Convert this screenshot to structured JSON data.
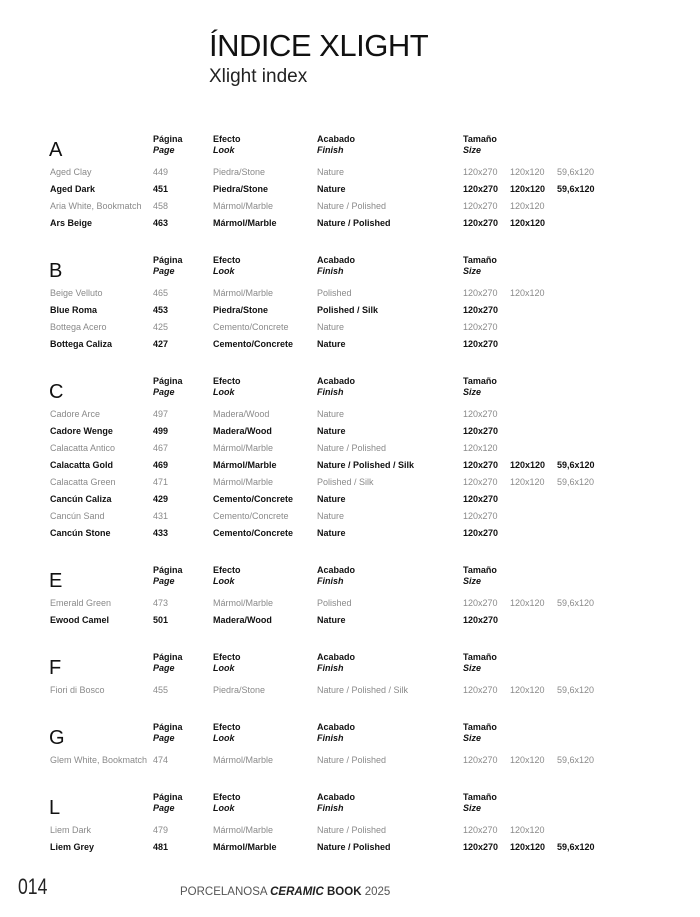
{
  "header": {
    "title": "ÍNDICE XLIGHT",
    "subtitle": "Xlight index"
  },
  "columns": {
    "page_es": "Página",
    "page_en": "Page",
    "look_es": "Efecto",
    "look_en": "Look",
    "finish_es": "Acabado",
    "finish_en": "Finish",
    "size_es": "Tamaño",
    "size_en": "Size"
  },
  "sections": [
    {
      "letter": "A",
      "rows": [
        {
          "name": "Aged Clay",
          "page": "449",
          "look": "Piedra/Stone",
          "finish": "Nature",
          "sizes": [
            "120x270",
            "120x120",
            "59,6x120"
          ]
        },
        {
          "name": "Aged Dark",
          "page": "451",
          "look": "Piedra/Stone",
          "finish": "Nature",
          "sizes": [
            "120x270",
            "120x120",
            "59,6x120"
          ]
        },
        {
          "name": "Aria White, Bookmatch",
          "page": "458",
          "look": "Mármol/Marble",
          "finish": "Nature / Polished",
          "sizes": [
            "120x270",
            "120x120"
          ]
        },
        {
          "name": "Ars Beige",
          "page": "463",
          "look": "Mármol/Marble",
          "finish": "Nature / Polished",
          "sizes": [
            "120x270",
            "120x120"
          ]
        }
      ]
    },
    {
      "letter": "B",
      "rows": [
        {
          "name": "Beige Velluto",
          "page": "465",
          "look": "Mármol/Marble",
          "finish": "Polished",
          "sizes": [
            "120x270",
            "120x120"
          ]
        },
        {
          "name": "Blue Roma",
          "page": "453",
          "look": "Piedra/Stone",
          "finish": "Polished / Silk",
          "sizes": [
            "120x270"
          ]
        },
        {
          "name": "Bottega Acero",
          "page": "425",
          "look": "Cemento/Concrete",
          "finish": "Nature",
          "sizes": [
            "120x270"
          ]
        },
        {
          "name": "Bottega Caliza",
          "page": "427",
          "look": "Cemento/Concrete",
          "finish": "Nature",
          "sizes": [
            "120x270"
          ]
        }
      ]
    },
    {
      "letter": "C",
      "rows": [
        {
          "name": "Cadore Arce",
          "page": "497",
          "look": "Madera/Wood",
          "finish": "Nature",
          "sizes": [
            "120x270"
          ]
        },
        {
          "name": "Cadore Wenge",
          "page": "499",
          "look": "Madera/Wood",
          "finish": "Nature",
          "sizes": [
            "120x270"
          ]
        },
        {
          "name": "Calacatta Antico",
          "page": "467",
          "look": "Mármol/Marble",
          "finish": "Nature / Polished",
          "sizes": [
            "120x120"
          ]
        },
        {
          "name": "Calacatta Gold",
          "page": "469",
          "look": "Mármol/Marble",
          "finish": "Nature / Polished / Silk",
          "sizes": [
            "120x270",
            "120x120",
            "59,6x120"
          ]
        },
        {
          "name": "Calacatta Green",
          "page": "471",
          "look": "Mármol/Marble",
          "finish": "Polished / Silk",
          "sizes": [
            "120x270",
            "120x120",
            "59,6x120"
          ]
        },
        {
          "name": "Cancún Caliza",
          "page": "429",
          "look": "Cemento/Concrete",
          "finish": "Nature",
          "sizes": [
            "120x270"
          ]
        },
        {
          "name": "Cancún Sand",
          "page": "431",
          "look": "Cemento/Concrete",
          "finish": "Nature",
          "sizes": [
            "120x270"
          ]
        },
        {
          "name": "Cancún Stone",
          "page": "433",
          "look": "Cemento/Concrete",
          "finish": "Nature",
          "sizes": [
            "120x270"
          ]
        }
      ]
    },
    {
      "letter": "E",
      "rows": [
        {
          "name": "Emerald Green",
          "page": "473",
          "look": "Mármol/Marble",
          "finish": "Polished",
          "sizes": [
            "120x270",
            "120x120",
            "59,6x120"
          ]
        },
        {
          "name": "Ewood Camel",
          "page": "501",
          "look": "Madera/Wood",
          "finish": "Nature",
          "sizes": [
            "120x270"
          ]
        }
      ]
    },
    {
      "letter": "F",
      "rows": [
        {
          "name": "Fiori di Bosco",
          "page": "455",
          "look": "Piedra/Stone",
          "finish": "Nature / Polished / Silk",
          "sizes": [
            "120x270",
            "120x120",
            "59,6x120"
          ]
        }
      ]
    },
    {
      "letter": "G",
      "rows": [
        {
          "name": "Glem White, Bookmatch",
          "page": "474",
          "look": "Mármol/Marble",
          "finish": "Nature / Polished",
          "sizes": [
            "120x270",
            "120x120",
            "59,6x120"
          ]
        }
      ]
    },
    {
      "letter": "L",
      "rows": [
        {
          "name": "Liem Dark",
          "page": "479",
          "look": "Mármol/Marble",
          "finish": "Nature / Polished",
          "sizes": [
            "120x270",
            "120x120"
          ]
        },
        {
          "name": "Liem Grey",
          "page": "481",
          "look": "Mármol/Marble",
          "finish": "Nature / Polished",
          "sizes": [
            "120x270",
            "120x120",
            "59,6x120"
          ]
        }
      ]
    }
  ],
  "footer": {
    "page_number": "014",
    "brand": "PORCELANOSA",
    "ceramic": "CERAMIC",
    "book": "BOOK",
    "year": "2025"
  }
}
